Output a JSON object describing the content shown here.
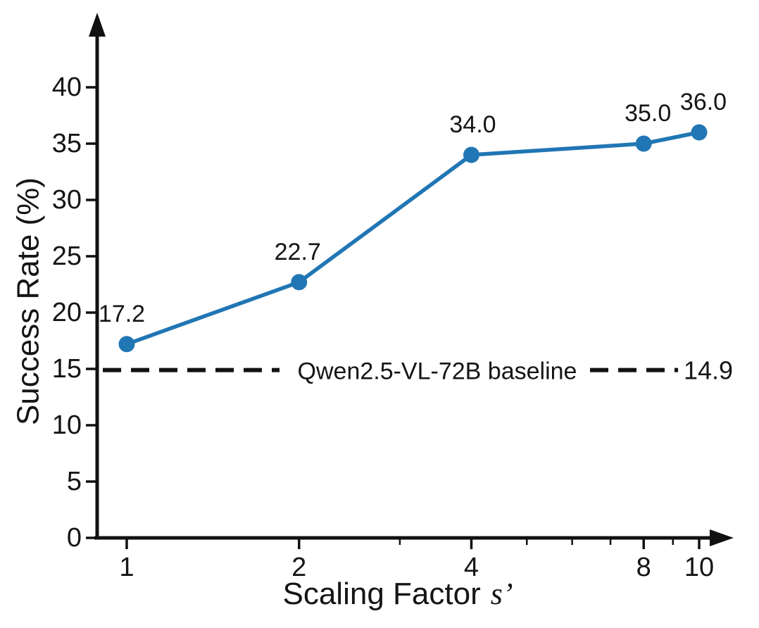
{
  "figure": {
    "background": "#ffffff",
    "text_color": "#151515",
    "axis_color": "#111111"
  },
  "chart_data": {
    "type": "line",
    "title": "",
    "xlabel": "Scaling Factor s’",
    "xlabel_main": "Scaling Factor",
    "xlabel_symbol": "s’",
    "ylabel": "Success Rate (%)",
    "x_scale": "log",
    "xlim": [
      1,
      10
    ],
    "ylim": [
      0,
      44
    ],
    "grid": false,
    "legend": "none",
    "xticks": [
      1,
      2,
      4,
      8,
      10
    ],
    "xtick_labels": [
      "1",
      "2",
      "4",
      "8",
      "10"
    ],
    "x_minor_ticks": [
      3,
      5,
      6,
      7,
      9
    ],
    "yticks": [
      0,
      5,
      10,
      15,
      20,
      25,
      30,
      35,
      40
    ],
    "ytick_labels": [
      "0",
      "5",
      "10",
      "15",
      "20",
      "25",
      "30",
      "35",
      "40"
    ],
    "series": [
      {
        "name": "Success Rate",
        "color": "#2176b4",
        "x": [
          1,
          2,
          4,
          8,
          10
        ],
        "values": [
          17.2,
          22.7,
          34.0,
          35.0,
          36.0
        ],
        "point_labels": [
          "17.2",
          "22.7",
          "34.0",
          "35.0",
          "36.0"
        ]
      }
    ],
    "baseline": {
      "label": "Qwen2.5-VL-72B baseline",
      "value": 14.9,
      "value_label": "14.9",
      "line_style": "dashed",
      "color": "#111111"
    }
  }
}
